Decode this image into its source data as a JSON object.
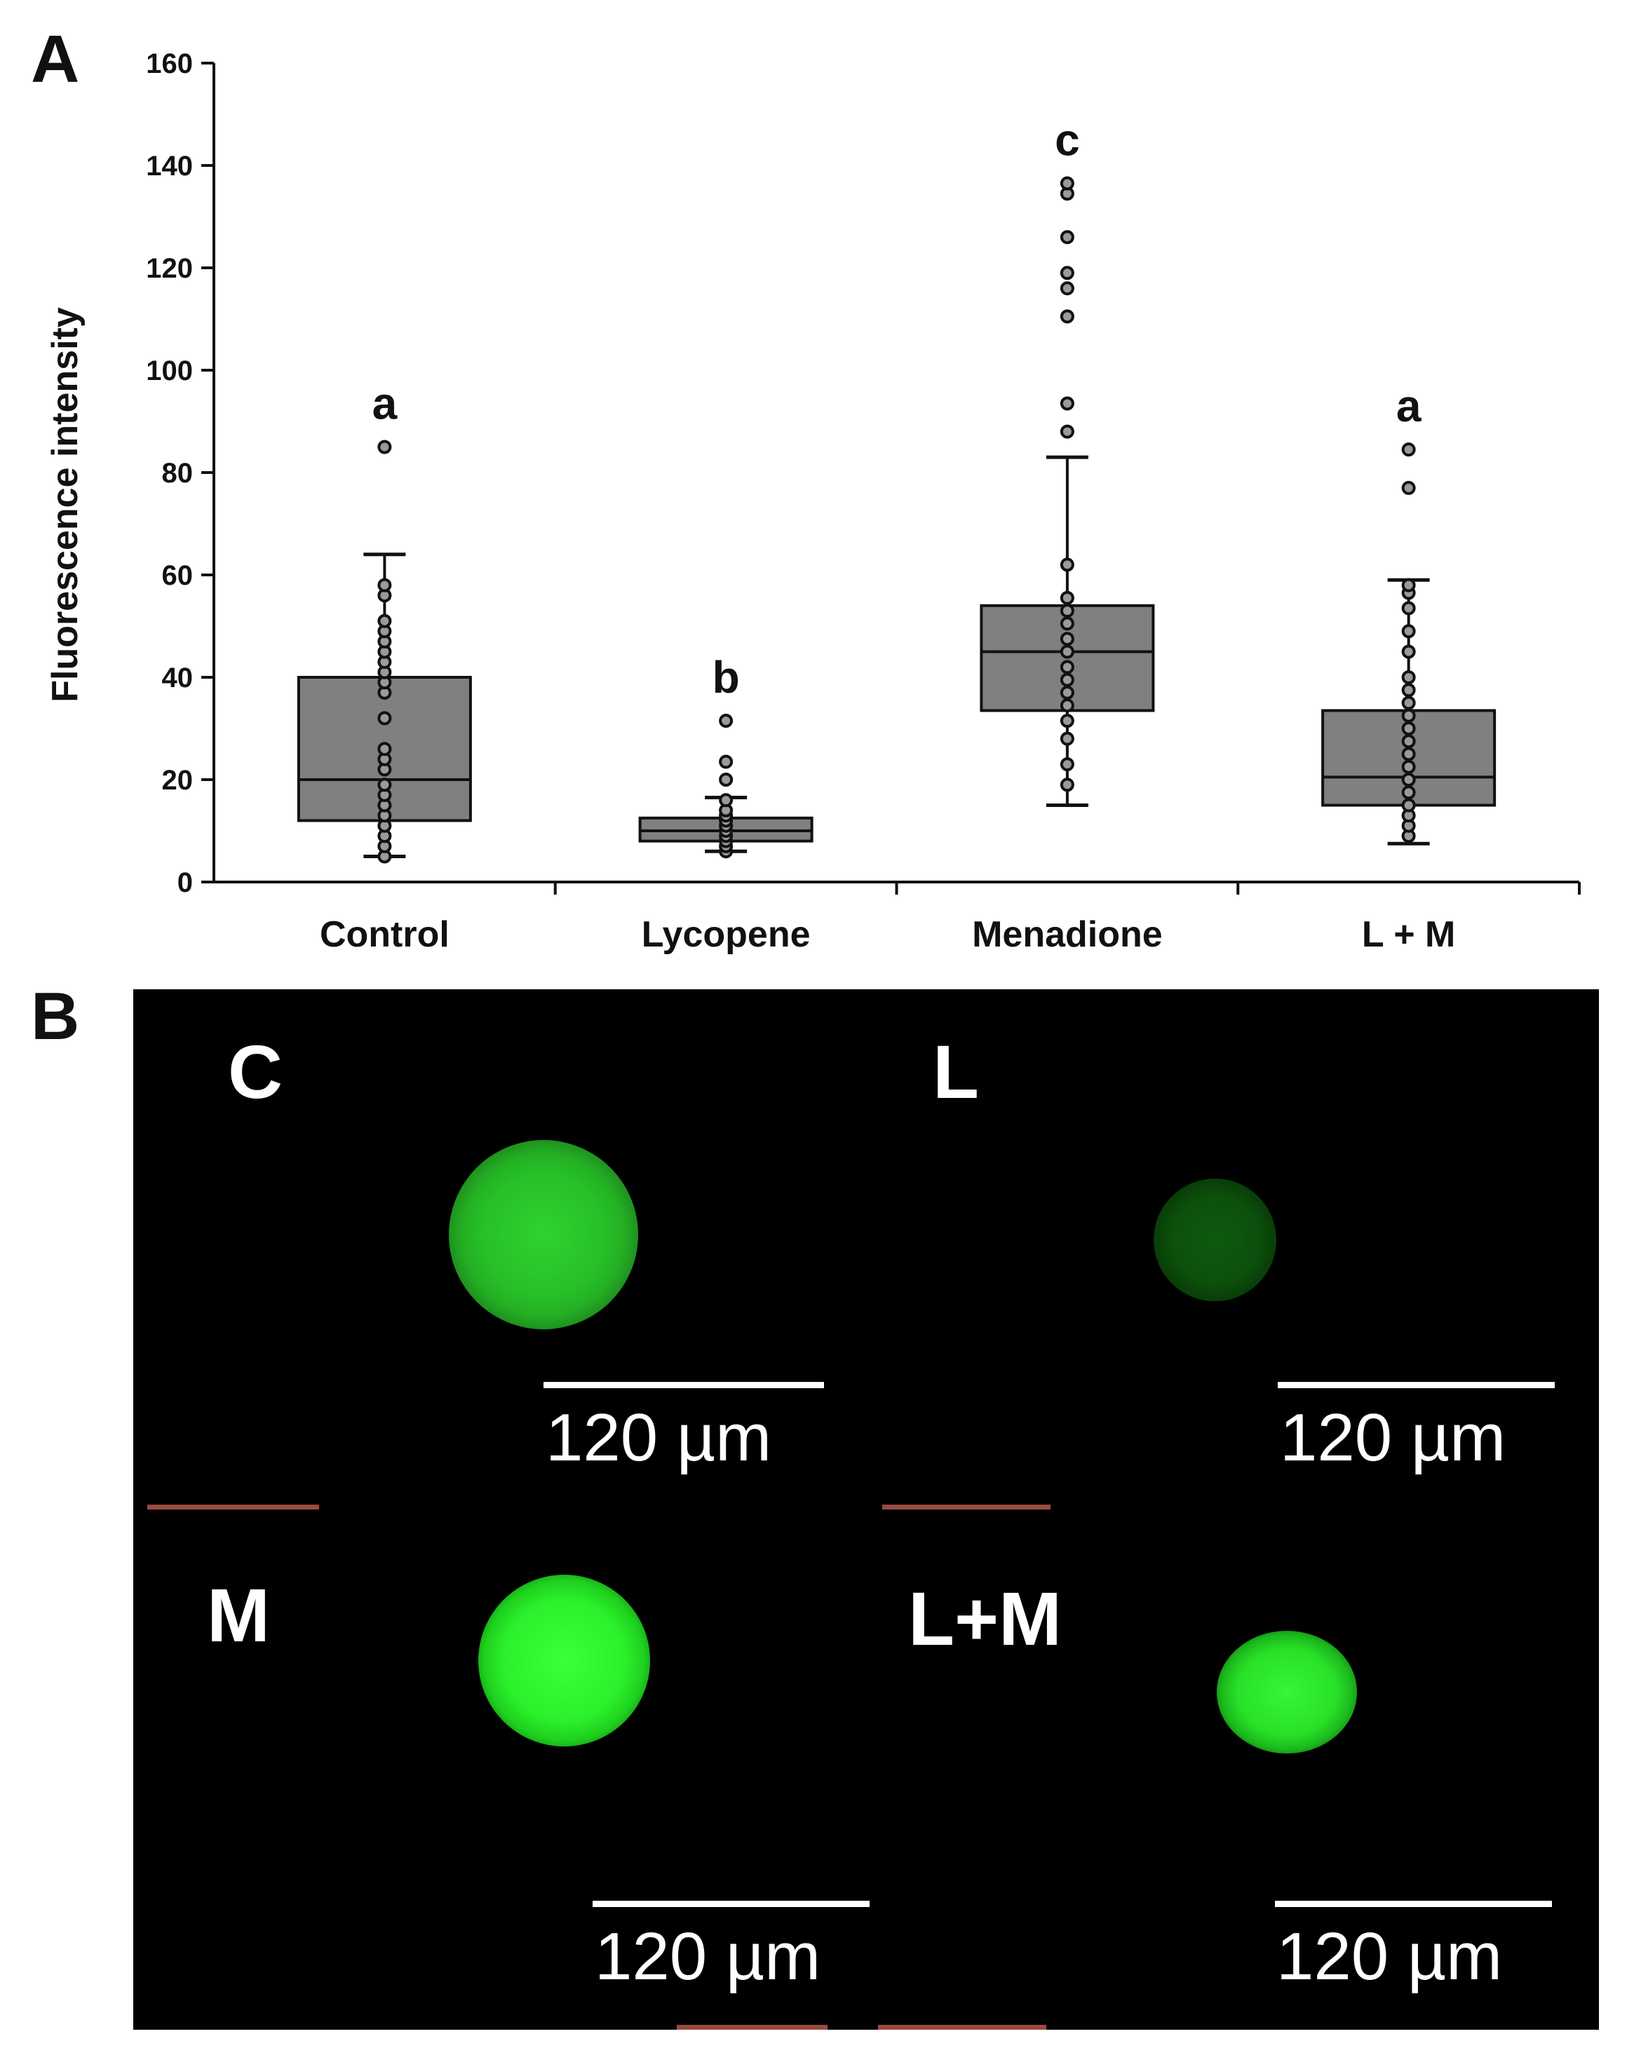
{
  "panel_a_letter": "A",
  "panel_b_letter": "B",
  "chart_data": {
    "type": "box",
    "ylabel": "Fluorescence intensity",
    "ylim": [
      0,
      160
    ],
    "yticks": [
      "0",
      "20",
      "40",
      "60",
      "80",
      "100",
      "120",
      "140",
      "160"
    ],
    "categories": [
      "Control",
      "Lycopene",
      "Menadione",
      "L + M"
    ],
    "significance": [
      "a",
      "b",
      "c",
      "a"
    ],
    "box_color": "#808080",
    "boxes": [
      {
        "min": 5,
        "q1": 12,
        "median": 20,
        "q3": 40,
        "max": 64,
        "points": [
          5,
          7,
          9,
          11,
          13,
          15,
          17,
          19,
          22,
          24,
          26,
          32,
          37,
          39,
          41,
          43,
          45,
          47,
          49,
          51,
          56,
          58,
          85
        ]
      },
      {
        "min": 6,
        "q1": 8,
        "median": 10,
        "q3": 12.5,
        "max": 16.5,
        "points": [
          6,
          7,
          8,
          9,
          10,
          11,
          12,
          13,
          14,
          16,
          20,
          23.5,
          31.5
        ]
      },
      {
        "min": 15,
        "q1": 33.5,
        "median": 45,
        "q3": 54,
        "max": 83,
        "points": [
          19,
          23,
          28,
          31.5,
          34.5,
          37,
          39.5,
          42,
          45,
          47.5,
          50.5,
          53,
          55.5,
          62,
          88,
          93.5,
          110.5,
          116,
          119,
          126,
          134.5,
          136.5
        ]
      },
      {
        "min": 7.5,
        "q1": 15,
        "median": 20.5,
        "q3": 33.5,
        "max": 59,
        "points": [
          9,
          11,
          13,
          15,
          17.5,
          20,
          22.5,
          25,
          27.5,
          30,
          32.5,
          35,
          37.5,
          40,
          45,
          49,
          53.5,
          56.5,
          58,
          77,
          84.5
        ]
      }
    ]
  },
  "micrographs": [
    {
      "label": "C",
      "scale": "120 µm"
    },
    {
      "label": "L",
      "scale": "120 µm"
    },
    {
      "label": "M",
      "scale": "120 µm"
    },
    {
      "label": "L+M",
      "scale": "120 µm"
    }
  ]
}
